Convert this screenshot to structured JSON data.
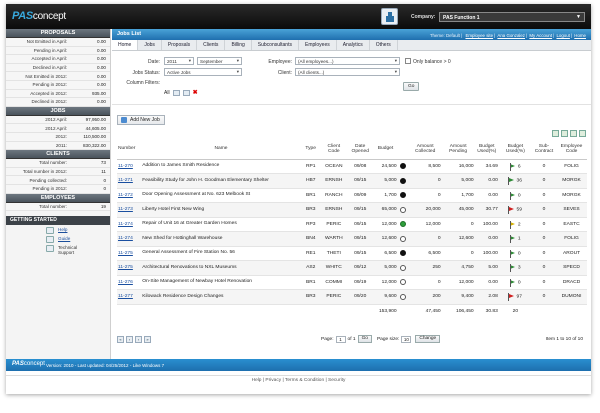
{
  "header": {
    "logo_bold": "PAS",
    "logo_rest": "concept",
    "company_label": "Company:",
    "company_value": "PAS Function 1"
  },
  "title_bar": {
    "title": "Jobs List",
    "theme_text": "Theme: Default |",
    "links": [
      "Employee site",
      "Ana Gonzalez",
      "My Account",
      "Logout",
      "Home"
    ]
  },
  "tabs": [
    "Home",
    "Jobs",
    "Proposals",
    "Clients",
    "Billing",
    "Subconsultants",
    "Employees",
    "Analytics",
    "Others"
  ],
  "sidebar": {
    "proposals_title": "PROPOSALS",
    "proposals": [
      {
        "label": "Not Emitted in April:",
        "value": "0.00"
      },
      {
        "label": "Pending in April:",
        "value": "0.00"
      },
      {
        "label": "Accepted in April:",
        "value": "0.00"
      },
      {
        "label": "Declined in April:",
        "value": "0.00"
      },
      {
        "label": "Not Emitted in 2012:",
        "value": "0.00"
      },
      {
        "label": "Pending in 2012:",
        "value": "0.00"
      },
      {
        "label": "Accepted in 2012:",
        "value": "935.00"
      },
      {
        "label": "Declined in 2012:",
        "value": "0.00"
      }
    ],
    "jobs_title": "JOBS",
    "jobs": [
      {
        "label": "2012 April:",
        "value": "97,950.00"
      },
      {
        "label": "2012 April:",
        "value": "44,605.00"
      },
      {
        "label": "2012:",
        "value": "110,500.00"
      },
      {
        "label": "2011:",
        "value": "830,322.00"
      }
    ],
    "clients_title": "CLIENTS",
    "clients": [
      {
        "label": "Total number:",
        "value": "73"
      },
      {
        "label": "Total number in 2012:",
        "value": "11"
      },
      {
        "label": "Pending collected:",
        "value": "0"
      },
      {
        "label": "Pending in 2012:",
        "value": "0"
      }
    ],
    "employees_title": "EMPLOYEES",
    "employees": [
      {
        "label": "Total number:",
        "value": "19"
      }
    ],
    "getting_started_title": "GETTING STARTED",
    "getting_started": [
      "Help",
      "Guide",
      "Technical Support"
    ]
  },
  "filters": {
    "date_label": "Date:",
    "year": "2011",
    "month": "September",
    "status_label": "Jobs Status:",
    "status": "Active Jobs",
    "columns_label": "Column Filters:",
    "columns_value": "All",
    "employee_label": "Employee:",
    "employee": "(All employees...)",
    "client_label": "Client:",
    "client": "(All clients...)",
    "only_balance_label": "Only balance > 0",
    "go_label": "Go"
  },
  "add_new_job_label": "Add New Job",
  "table": {
    "headers": [
      "Number",
      "Name",
      "Type",
      "Client Code",
      "Date Opened",
      "Budget",
      "Amount Collected",
      "Amount Pending",
      "Budget Used(%)",
      "Budget Used(%)",
      "Sub-Contract",
      "Employee Code"
    ],
    "rows": [
      {
        "number": "11-270",
        "name": "Addition to James Smith Residence",
        "type": "RP1",
        "client": "OCEAN",
        "date": "09/08",
        "budget": "24,500",
        "dot": "black",
        "collected": "8,500",
        "pending": "16,000",
        "used": "34.69",
        "flag": "green",
        "budget_used": "6",
        "sub": "0",
        "emp": "FOLIG"
      },
      {
        "number": "11-271",
        "name": "Feasibility Study for John H. Goodman Elementary Shelter",
        "type": "HB7",
        "client": "ERNSH",
        "date": "09/15",
        "budget": "5,000",
        "dot": "black",
        "collected": "0",
        "pending": "5,000",
        "used": "0.00",
        "flag": "green",
        "budget_used": "36",
        "sub": "0",
        "emp": "MORGK"
      },
      {
        "number": "11-272",
        "name": "Door Opening Assessment at No. 623 Melbook St",
        "type": "BR1",
        "client": "RANCH",
        "date": "09/09",
        "budget": "1,700",
        "dot": "black",
        "collected": "0",
        "pending": "1,700",
        "used": "0.00",
        "flag": "green",
        "budget_used": "0",
        "sub": "0",
        "emp": "MORGK"
      },
      {
        "number": "11-273",
        "name": "Liberty Hotel First New Wing",
        "type": "BR3",
        "client": "ERNSH",
        "date": "09/15",
        "budget": "65,000",
        "dot": "white",
        "collected": "20,000",
        "pending": "45,000",
        "used": "30.77",
        "flag": "red",
        "budget_used": "59",
        "sub": "0",
        "emp": "SEVES"
      },
      {
        "number": "11-274",
        "name": "Repair of Unit 16 at Greater Garden Homes",
        "type": "RP3",
        "client": "PERIC",
        "date": "09/15",
        "budget": "12,000",
        "dot": "green",
        "collected": "12,000",
        "pending": "0",
        "used": "100.00",
        "flag": "yellow",
        "budget_used": "2",
        "sub": "0",
        "emp": "EASTC"
      },
      {
        "number": "11-274",
        "name": "New Shed for Hottinghall Warehouse",
        "type": "BN4",
        "client": "WARTH",
        "date": "09/15",
        "budget": "12,600",
        "dot": "white",
        "collected": "0",
        "pending": "12,600",
        "used": "0.00",
        "flag": "green",
        "budget_used": "1",
        "sub": "0",
        "emp": "FOLIG"
      },
      {
        "number": "11-275",
        "name": "General Assessment of Fire Station No. 56",
        "type": "RE1",
        "client": "THETI",
        "date": "09/15",
        "budget": "6,500",
        "dot": "black",
        "collected": "6,500",
        "pending": "0",
        "used": "100.00",
        "flag": "green",
        "budget_used": "0",
        "sub": "0",
        "emp": "AROUT"
      },
      {
        "number": "11-275",
        "name": "Architectural Renovations to NXL Museums",
        "type": "AS2",
        "client": "WHITC",
        "date": "09/12",
        "budget": "5,000",
        "dot": "white",
        "collected": "250",
        "pending": "4,750",
        "used": "5.00",
        "flag": "green",
        "budget_used": "3",
        "sub": "0",
        "emp": "SPECD"
      },
      {
        "number": "11-276",
        "name": "On-Site Management of Newbay Hotel Renovation",
        "type": "BR1",
        "client": "COMMI",
        "date": "09/19",
        "budget": "12,000",
        "dot": "white",
        "collected": "0",
        "pending": "12,000",
        "used": "0.00",
        "flag": "green",
        "budget_used": "0",
        "sub": "0",
        "emp": "DRACD"
      },
      {
        "number": "11-277",
        "name": "Kilowack Residence Design Changes",
        "type": "BR3",
        "client": "PERIC",
        "date": "09/20",
        "budget": "9,600",
        "dot": "white",
        "collected": "200",
        "pending": "9,400",
        "used": "2.08",
        "flag": "red",
        "budget_used": "97",
        "sub": "0",
        "emp": "DUMONI"
      }
    ],
    "totals": {
      "budget": "153,900",
      "collected": "47,450",
      "pending": "106,450",
      "used": "30.83",
      "budget_used": "20"
    }
  },
  "pager": {
    "page_label": "Page:",
    "page_value": "1",
    "of_label": "of 1",
    "go_label": "Go",
    "size_label": "Page size:",
    "size_value": "10",
    "change_label": "Change",
    "items_text": "Item 1 to 10 of 10"
  },
  "footer": {
    "logo_bold": "PAS",
    "logo_rest": "concept",
    "version_text": "Version: 2010 - Last updated: 04/25/2012 - Like Windows 7",
    "bottom_links": "Help | Privacy | Terms & Condition | Security"
  }
}
